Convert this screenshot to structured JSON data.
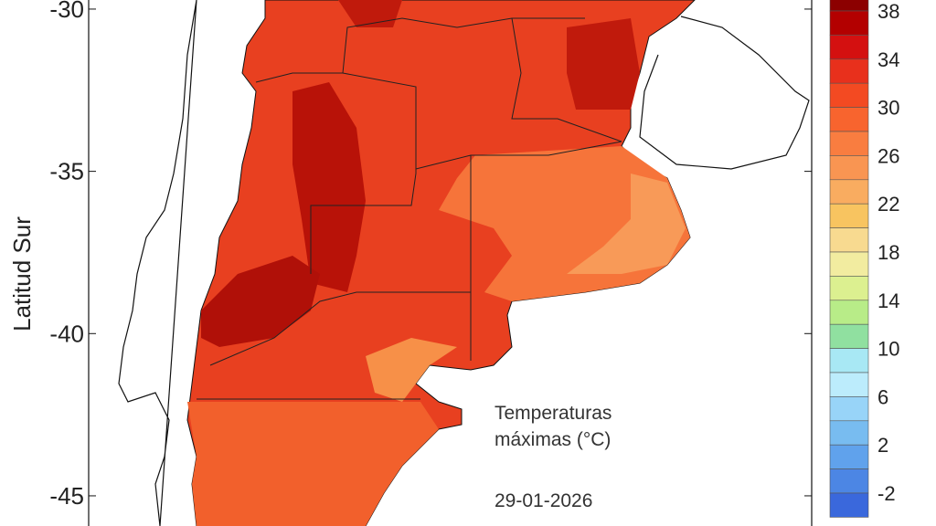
{
  "map": {
    "y_axis_label": "Latitud Sur",
    "ylim": [
      -29.72,
      -45.93
    ],
    "yticks": [
      -30,
      -35,
      -40,
      -45
    ],
    "title_lines": [
      "Temperaturas",
      "máximas (°C)"
    ],
    "date": "29-01-2026",
    "legend": {
      "labels": [
        38,
        34,
        30,
        26,
        22,
        18,
        14,
        10,
        6,
        2,
        -2
      ],
      "colors": [
        "#8c0000",
        "#b30000",
        "#d41010",
        "#e8301c",
        "#f34a22",
        "#f8642e",
        "#f97d40",
        "#f99552",
        "#f9ac60",
        "#f8c460",
        "#f8da90",
        "#f2eca0",
        "#dcf090",
        "#b8ec88",
        "#90e0a0",
        "#a8e8f4",
        "#bcecfc",
        "#98d4f8",
        "#78bcf0",
        "#60a2ec",
        "#4c86e4",
        "#3a68dc"
      ]
    }
  }
}
